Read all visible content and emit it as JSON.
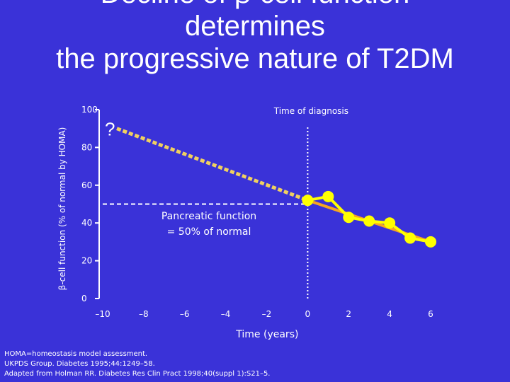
{
  "slide": {
    "title_lines": [
      "Decline of β-cell function",
      "determines",
      "the progressive nature of T2DM"
    ],
    "footnotes": [
      "HOMA=homeostasis model assessment.",
      "UKPDS Group. Diabetes 1995;44:1249–58.",
      "Adapted from Holman RR. Diabetes Res Clin Pract 1998;40(suppl 1):S21–5."
    ]
  },
  "chart_data": {
    "type": "line",
    "xlabel": "Time (years)",
    "ylabel": "β-cell function (% of normal by HOMA)",
    "xlim": [
      -10,
      6
    ],
    "ylim": [
      0,
      100
    ],
    "x_ticks": [
      -10,
      -8,
      -6,
      -4,
      -2,
      0,
      2,
      4,
      6
    ],
    "x_tick_labels": [
      "–10",
      "–8",
      "–6",
      "–4",
      "–2",
      "0",
      "2",
      "4",
      "6"
    ],
    "y_ticks": [
      0,
      20,
      40,
      60,
      80,
      100
    ],
    "series": [
      {
        "kind": "observed",
        "x": [
          0,
          1,
          2,
          3,
          4,
          5,
          6
        ],
        "y": [
          52,
          54,
          43,
          41,
          40,
          32,
          30
        ],
        "color": "#ffff00"
      }
    ],
    "trend_line": {
      "x": [
        6,
        0
      ],
      "y": [
        30,
        52
      ],
      "color": "#f5a623"
    },
    "extrapolation": {
      "x": [
        -10,
        0
      ],
      "y": [
        87,
        52
      ],
      "color": "#f0d060"
    },
    "unknown_marker": {
      "x": -10,
      "y": 87,
      "text": "?"
    },
    "diagnosis_line": {
      "x": 0,
      "label": "Time of diagnosis",
      "color": "#ffffff"
    },
    "threshold_line": {
      "y": 50,
      "from_x": -10,
      "to_x": 0,
      "color": "#ffffff"
    },
    "annotations": [
      {
        "text_lines": [
          "Pancreatic function",
          "= 50% of normal"
        ]
      }
    ]
  }
}
